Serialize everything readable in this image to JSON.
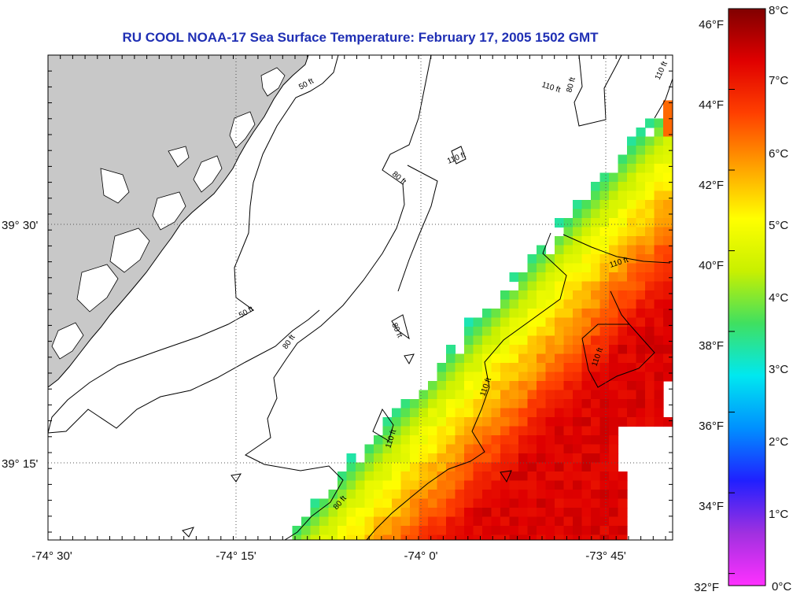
{
  "title": "RU COOL  NOAA-17  Sea Surface Temperature:  February 17, 2005 1502 GMT",
  "map": {
    "lon_ticks": [
      "-74° 30'",
      "-74° 15'",
      "-74° 0'",
      "-73° 45'"
    ],
    "lat_ticks": [
      "39° 30'",
      "39° 15'"
    ],
    "grid": true,
    "land_color": "#c8c8c8"
  },
  "contours": {
    "labels": [
      "50 ft",
      "50 ft",
      "80 ft",
      "80 ft",
      "80 ft",
      "80 ft",
      "80 ft",
      "110 ft",
      "110 ft",
      "110 ft",
      "110 ft",
      "110 ft",
      "110 ft",
      "110 ft"
    ]
  },
  "colorbar": {
    "fahrenheit": [
      "46°F",
      "44°F",
      "42°F",
      "40°F",
      "38°F",
      "36°F",
      "34°F",
      "32°F"
    ],
    "celsius": [
      "8°C",
      "7°C",
      "6°C",
      "5°C",
      "4°C",
      "3°C",
      "2°C",
      "1°C",
      "0°C"
    ],
    "colors": [
      "#ff30ff",
      "#a030e0",
      "#2020ff",
      "#0090ff",
      "#00e8f0",
      "#40e060",
      "#c8f000",
      "#ffff00",
      "#ffa000",
      "#ff4000",
      "#e00000",
      "#800000"
    ]
  }
}
